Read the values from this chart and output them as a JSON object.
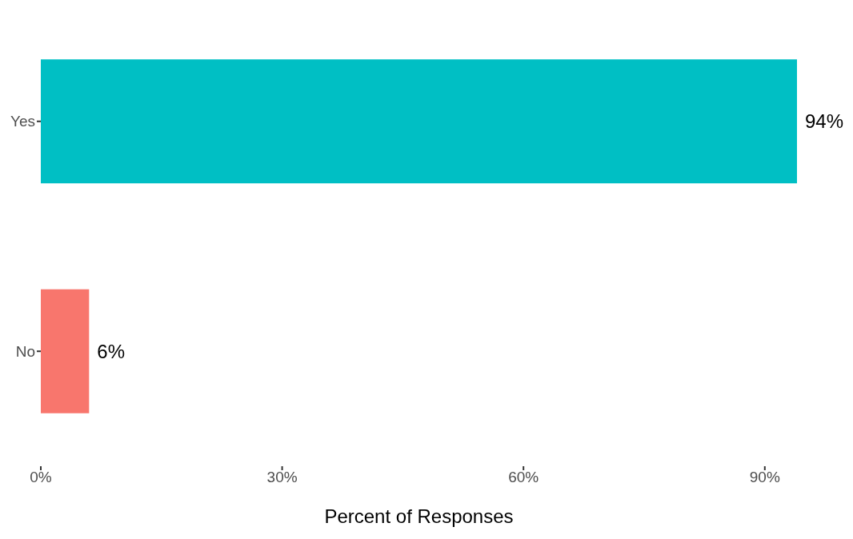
{
  "chart_data": {
    "type": "bar",
    "orientation": "horizontal",
    "xlabel": "Percent of Responses",
    "categories": [
      "Yes",
      "No"
    ],
    "values": [
      94,
      6
    ],
    "colors": [
      "#00bfc4",
      "#f8766d"
    ],
    "value_labels": [
      "94%",
      "6%"
    ],
    "xlim": [
      0,
      94
    ],
    "xticks": [
      {
        "value": 0,
        "label": "0%"
      },
      {
        "value": 30,
        "label": "30%"
      },
      {
        "value": 60,
        "label": "60%"
      },
      {
        "value": 90,
        "label": "90%"
      }
    ],
    "grid": false,
    "legend": false
  }
}
